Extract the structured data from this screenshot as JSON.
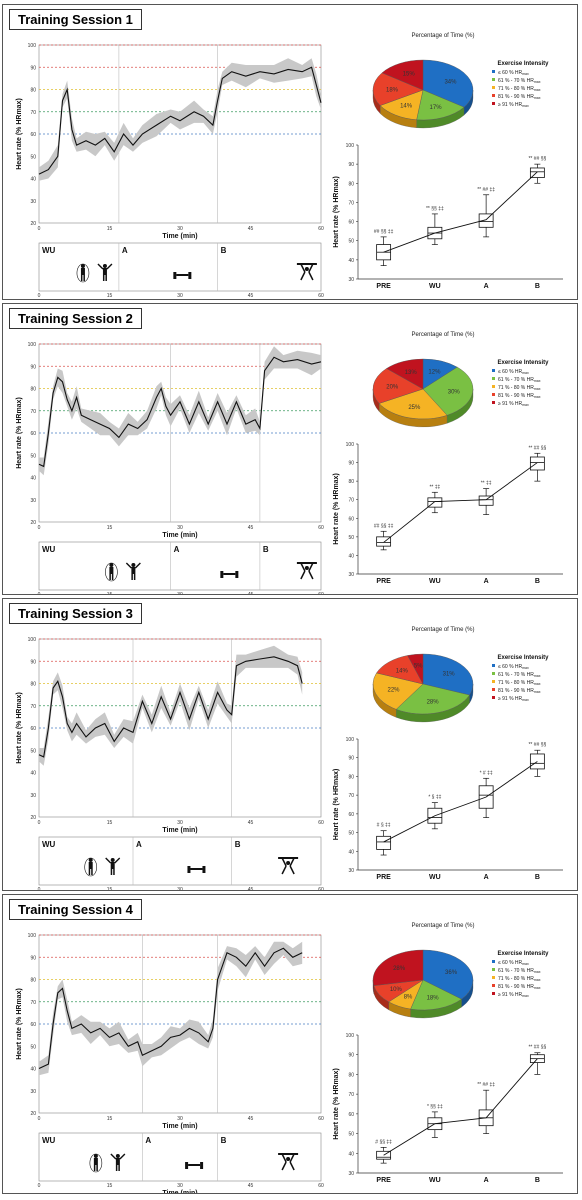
{
  "common": {
    "hr_ylabel": "Heart rate (% HRmax)",
    "time_xlabel": "Time (min)",
    "hr_yticks": [
      "20",
      "30",
      "40",
      "50",
      "60",
      "70",
      "80",
      "90",
      "100"
    ],
    "time_xticks": [
      "0",
      "15",
      "30",
      "45",
      "60"
    ],
    "pie_title": "Percentage of Time (%)",
    "legend_title": "Exercise Intensity",
    "legend_items": [
      {
        "label": "≤ 60 % HR",
        "sub": "max",
        "color": "#1f6fc4"
      },
      {
        "label": "61 % - 70 % HR",
        "sub": "max",
        "color": "#7ac043"
      },
      {
        "label": "71 % - 80 % HR",
        "sub": "max",
        "color": "#f5b324"
      },
      {
        "label": "81 % - 90 % HR",
        "sub": "max",
        "color": "#e8412a"
      },
      {
        "label": "≥ 91 % HR",
        "sub": "max",
        "color": "#c0131f"
      }
    ],
    "box_ylabel": "Heart rate (% HRmax)",
    "box_categories": [
      "PRE",
      "WU",
      "A",
      "B"
    ],
    "box_yticks": [
      "30",
      "40",
      "50",
      "60",
      "70",
      "80",
      "90",
      "100"
    ],
    "ref_line_colors": {
      "100": "#d9534f",
      "90": "#d9534f",
      "80": "#e0c030",
      "70": "#3c9a5f",
      "60": "#4a7fc1"
    },
    "phase_labels": {
      "wu": "WU",
      "a": "A",
      "b": "B"
    }
  },
  "sessions": [
    {
      "title": "Training Session 1",
      "phase_a_min": 17,
      "phase_b_min": 38,
      "end_min": 60,
      "hr_profile": [
        [
          0,
          42
        ],
        [
          2,
          44
        ],
        [
          4,
          50
        ],
        [
          5,
          75
        ],
        [
          6,
          80
        ],
        [
          7,
          62
        ],
        [
          8,
          55
        ],
        [
          10,
          57
        ],
        [
          12,
          55
        ],
        [
          14,
          58
        ],
        [
          16,
          52
        ],
        [
          18,
          60
        ],
        [
          20,
          55
        ],
        [
          22,
          60
        ],
        [
          25,
          64
        ],
        [
          28,
          68
        ],
        [
          30,
          66
        ],
        [
          33,
          70
        ],
        [
          35,
          68
        ],
        [
          37,
          64
        ],
        [
          38,
          75
        ],
        [
          39,
          85
        ],
        [
          41,
          88
        ],
        [
          44,
          86
        ],
        [
          47,
          88
        ],
        [
          50,
          87
        ],
        [
          53,
          89
        ],
        [
          56,
          88
        ],
        [
          58,
          90
        ],
        [
          59,
          82
        ],
        [
          60,
          74
        ]
      ],
      "pie_values": [
        34,
        17,
        14,
        18,
        15
      ],
      "pie_labels": [
        "34%",
        "17%",
        "14%",
        "18%",
        "15%"
      ],
      "boxes": [
        {
          "cat": "PRE",
          "min": 37,
          "q1": 40,
          "median": 44,
          "q3": 48,
          "max": 52,
          "mean": 44,
          "annot": "## §§ ‡‡"
        },
        {
          "cat": "WU",
          "min": 48,
          "q1": 51,
          "median": 54,
          "q3": 57,
          "max": 64,
          "mean": 54,
          "annot": "** §§ ‡‡"
        },
        {
          "cat": "A",
          "min": 52,
          "q1": 57,
          "median": 60,
          "q3": 64,
          "max": 74,
          "mean": 61,
          "annot": "** ## ‡‡"
        },
        {
          "cat": "B",
          "min": 80,
          "q1": 83,
          "median": 86,
          "q3": 88,
          "max": 90,
          "mean": 86,
          "annot": "** ## §§"
        }
      ]
    },
    {
      "title": "Training Session 2",
      "phase_a_min": 28,
      "phase_b_min": 47,
      "end_min": 60,
      "hr_profile": [
        [
          0,
          46
        ],
        [
          1,
          45
        ],
        [
          2,
          60
        ],
        [
          3,
          78
        ],
        [
          4,
          85
        ],
        [
          5,
          83
        ],
        [
          6,
          75
        ],
        [
          7,
          70
        ],
        [
          8,
          76
        ],
        [
          9,
          68
        ],
        [
          11,
          66
        ],
        [
          13,
          64
        ],
        [
          15,
          62
        ],
        [
          17,
          58
        ],
        [
          19,
          64
        ],
        [
          21,
          62
        ],
        [
          23,
          66
        ],
        [
          25,
          76
        ],
        [
          26,
          80
        ],
        [
          27,
          72
        ],
        [
          28,
          68
        ],
        [
          30,
          74
        ],
        [
          32,
          64
        ],
        [
          34,
          74
        ],
        [
          36,
          64
        ],
        [
          38,
          74
        ],
        [
          40,
          64
        ],
        [
          42,
          74
        ],
        [
          44,
          64
        ],
        [
          46,
          66
        ],
        [
          47,
          62
        ],
        [
          48,
          88
        ],
        [
          50,
          94
        ],
        [
          52,
          92
        ],
        [
          55,
          93
        ],
        [
          58,
          91
        ],
        [
          60,
          92
        ]
      ],
      "pie_values": [
        12,
        30,
        25,
        20,
        13
      ],
      "pie_labels": [
        "12%",
        "30%",
        "25%",
        "20%",
        "13%"
      ],
      "boxes": [
        {
          "cat": "PRE",
          "min": 43,
          "q1": 45,
          "median": 47,
          "q3": 50,
          "max": 53,
          "mean": 47,
          "annot": "## §§ ‡‡"
        },
        {
          "cat": "WU",
          "min": 63,
          "q1": 66,
          "median": 69,
          "q3": 71,
          "max": 74,
          "mean": 69,
          "annot": "** ‡‡"
        },
        {
          "cat": "A",
          "min": 62,
          "q1": 67,
          "median": 70,
          "q3": 72,
          "max": 76,
          "mean": 70,
          "annot": "** ‡‡"
        },
        {
          "cat": "B",
          "min": 80,
          "q1": 86,
          "median": 90,
          "q3": 93,
          "max": 95,
          "mean": 90,
          "annot": "** ## §§"
        }
      ]
    },
    {
      "title": "Training Session 3",
      "phase_a_min": 20,
      "phase_b_min": 41,
      "end_min": 56,
      "hr_profile": [
        [
          0,
          48
        ],
        [
          1,
          47
        ],
        [
          2,
          60
        ],
        [
          3,
          78
        ],
        [
          4,
          81
        ],
        [
          5,
          74
        ],
        [
          6,
          62
        ],
        [
          7,
          58
        ],
        [
          8,
          62
        ],
        [
          10,
          56
        ],
        [
          12,
          60
        ],
        [
          14,
          62
        ],
        [
          16,
          54
        ],
        [
          18,
          60
        ],
        [
          20,
          58
        ],
        [
          22,
          72
        ],
        [
          24,
          62
        ],
        [
          26,
          74
        ],
        [
          28,
          64
        ],
        [
          30,
          76
        ],
        [
          32,
          64
        ],
        [
          34,
          76
        ],
        [
          36,
          64
        ],
        [
          38,
          76
        ],
        [
          40,
          68
        ],
        [
          41,
          66
        ],
        [
          42,
          88
        ],
        [
          44,
          90
        ],
        [
          47,
          91
        ],
        [
          50,
          92
        ],
        [
          53,
          90
        ],
        [
          55,
          88
        ],
        [
          56,
          80
        ]
      ],
      "pie_values": [
        31,
        28,
        22,
        14,
        5
      ],
      "pie_labels": [
        "31%",
        "28%",
        "22%",
        "14%",
        "5%"
      ],
      "boxes": [
        {
          "cat": "PRE",
          "min": 38,
          "q1": 41,
          "median": 45,
          "q3": 48,
          "max": 51,
          "mean": 45,
          "annot": "# § ‡‡"
        },
        {
          "cat": "WU",
          "min": 52,
          "q1": 55,
          "median": 58,
          "q3": 63,
          "max": 66,
          "mean": 59,
          "annot": "* § ‡‡"
        },
        {
          "cat": "A",
          "min": 58,
          "q1": 63,
          "median": 70,
          "q3": 75,
          "max": 79,
          "mean": 69,
          "annot": "* # ‡‡"
        },
        {
          "cat": "B",
          "min": 80,
          "q1": 84,
          "median": 87,
          "q3": 92,
          "max": 94,
          "mean": 88,
          "annot": "** ## §§"
        }
      ]
    },
    {
      "title": "Training Session 4",
      "phase_a_min": 22,
      "phase_b_min": 38,
      "end_min": 56,
      "hr_profile": [
        [
          0,
          40
        ],
        [
          2,
          42
        ],
        [
          3,
          60
        ],
        [
          4,
          74
        ],
        [
          5,
          76
        ],
        [
          6,
          66
        ],
        [
          7,
          58
        ],
        [
          9,
          60
        ],
        [
          11,
          56
        ],
        [
          13,
          58
        ],
        [
          15,
          54
        ],
        [
          17,
          56
        ],
        [
          19,
          50
        ],
        [
          21,
          52
        ],
        [
          22,
          46
        ],
        [
          24,
          48
        ],
        [
          26,
          50
        ],
        [
          28,
          54
        ],
        [
          30,
          55
        ],
        [
          32,
          58
        ],
        [
          34,
          56
        ],
        [
          36,
          52
        ],
        [
          37,
          58
        ],
        [
          38,
          80
        ],
        [
          40,
          92
        ],
        [
          42,
          90
        ],
        [
          44,
          86
        ],
        [
          46,
          92
        ],
        [
          48,
          86
        ],
        [
          50,
          92
        ],
        [
          52,
          94
        ],
        [
          54,
          90
        ],
        [
          56,
          92
        ]
      ],
      "pie_values": [
        36,
        18,
        8,
        10,
        28
      ],
      "pie_labels": [
        "36%",
        "18%",
        "8%",
        "10%",
        "28%"
      ],
      "boxes": [
        {
          "cat": "PRE",
          "min": 35,
          "q1": 37,
          "median": 38,
          "q3": 41,
          "max": 43,
          "mean": 39,
          "annot": "# §§ ‡‡"
        },
        {
          "cat": "WU",
          "min": 48,
          "q1": 52,
          "median": 55,
          "q3": 58,
          "max": 61,
          "mean": 55,
          "annot": "* §§ ‡‡"
        },
        {
          "cat": "A",
          "min": 50,
          "q1": 54,
          "median": 58,
          "q3": 62,
          "max": 72,
          "mean": 58,
          "annot": "** ## ‡‡"
        },
        {
          "cat": "B",
          "min": 80,
          "q1": 86,
          "median": 88,
          "q3": 90,
          "max": 91,
          "mean": 88,
          "annot": "** ## §§"
        }
      ]
    }
  ],
  "chart_data": [
    {
      "type": "line",
      "title": "Training Session 1",
      "xlabel": "Time (min)",
      "ylabel": "Heart rate (% HRmax)",
      "xlim": [
        0,
        60
      ],
      "ylim": [
        20,
        100
      ]
    },
    {
      "type": "pie",
      "title": "Percentage of Time (%)",
      "labels": [
        "≤ 60 % HRmax",
        "61 % - 70 % HRmax",
        "71 % - 80 % HRmax",
        "81 % - 90 % HRmax",
        "≥ 91 % HRmax"
      ]
    },
    {
      "type": "box",
      "ylabel": "Heart rate (% HRmax)",
      "categories": [
        "PRE",
        "WU",
        "A",
        "B"
      ],
      "ylim": [
        30,
        100
      ]
    }
  ]
}
